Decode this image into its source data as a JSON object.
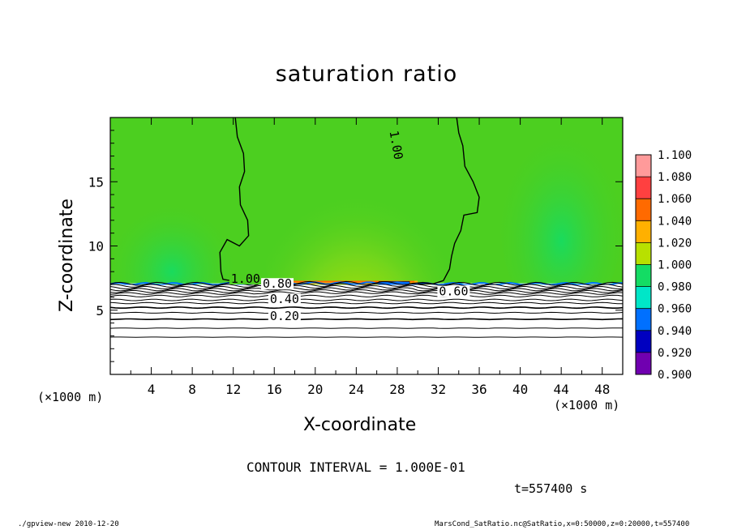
{
  "chart_data": {
    "type": "heatmap",
    "title": "saturation ratio",
    "xlabel": "X-coordinate",
    "ylabel": "Z-coordinate",
    "x_unit": "(×1000 m)",
    "xlim": [
      0,
      50
    ],
    "ylim": [
      0,
      20
    ],
    "x_ticks": [
      4,
      8,
      12,
      16,
      20,
      24,
      28,
      32,
      36,
      40,
      44,
      48
    ],
    "y_ticks": [
      5,
      10,
      15
    ],
    "colorbar": {
      "levels": [
        "1.100",
        "1.080",
        "1.060",
        "1.040",
        "1.020",
        "1.000",
        "0.980",
        "0.960",
        "0.940",
        "0.920",
        "0.900"
      ],
      "colors": [
        "#ff9a9a",
        "#ff4040",
        "#ff6a00",
        "#ffb000",
        "#b8e000",
        "#4ccf20",
        "#14dc64",
        "#00e6c8",
        "#0070ff",
        "#0000c0",
        "#7000b0"
      ]
    },
    "contour_labels": [
      {
        "text": "1.00",
        "x": 27.5,
        "z": 17.8
      },
      {
        "text": "1.00",
        "x": 13.2,
        "z": 7.2
      },
      {
        "text": "0.80",
        "x": 16.3,
        "z": 6.8
      },
      {
        "text": "0.60",
        "x": 33.5,
        "z": 6.2
      },
      {
        "text": "0.40",
        "x": 17.0,
        "z": 5.6
      },
      {
        "text": "0.20",
        "x": 17.0,
        "z": 4.3
      }
    ],
    "cloud_top_z": 7.1,
    "high_region_x": [
      15,
      30
    ],
    "grid": false,
    "legend": "right"
  },
  "contour_interval": "CONTOUR INTERVAL = 1.000E-01",
  "time_label": "t=557400 s",
  "footer_left": "./gpview-new  2010-12-20",
  "footer_right": "MarsCond_SatRatio.nc@SatRatio,x=0:50000,z=0:20000,t=557400"
}
